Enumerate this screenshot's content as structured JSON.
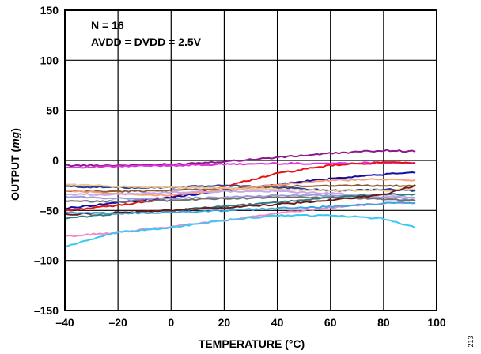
{
  "chart_data": {
    "type": "line",
    "xlabel": "TEMPERATURE (°C)",
    "ylabel": "OUTPUT (mg)",
    "ylabel_parts": [
      "OUTPUT (",
      "mg",
      ")"
    ],
    "xlim": [
      -40,
      100
    ],
    "ylim": [
      -150,
      150
    ],
    "x_ticks": [
      -40,
      -20,
      0,
      20,
      40,
      60,
      80,
      100
    ],
    "x_tick_labels": [
      "–40",
      "–20",
      "0",
      "20",
      "40",
      "60",
      "80",
      "100"
    ],
    "y_ticks": [
      -150,
      -100,
      -50,
      0,
      50,
      100,
      150
    ],
    "y_tick_labels": [
      "–150",
      "–100",
      "–50",
      "0",
      "50",
      "100",
      "150"
    ],
    "grid": true,
    "annotations": [
      "N = 16",
      "AVDD = DVDD = 2.5V"
    ],
    "figure_id": "213",
    "series": [
      {
        "color": "#8B1A8B",
        "x": [
          -40,
          -20,
          0,
          20,
          40,
          60,
          80,
          92
        ],
        "y": [
          -5,
          -5,
          -4,
          -1,
          3,
          7,
          10,
          9
        ]
      },
      {
        "color": "#E030E0",
        "x": [
          -40,
          -20,
          0,
          20,
          40,
          60,
          80,
          92
        ],
        "y": [
          -7,
          -6,
          -5,
          -4,
          -3,
          -3,
          -2,
          -3
        ]
      },
      {
        "color": "#E81010",
        "x": [
          -40,
          -20,
          0,
          20,
          40,
          60,
          80,
          92
        ],
        "y": [
          -50,
          -45,
          -37,
          -26,
          -13,
          -5,
          -2,
          -3
        ]
      },
      {
        "color": "#1010A0",
        "x": [
          -40,
          -20,
          0,
          20,
          40,
          60,
          80,
          92
        ],
        "y": [
          -48,
          -42,
          -37,
          -30,
          -24,
          -18,
          -14,
          -12
        ]
      },
      {
        "color": "#2E3E9A",
        "x": [
          -40,
          -20,
          0,
          20,
          40,
          60,
          80,
          92
        ],
        "y": [
          -26,
          -27,
          -27,
          -25,
          -27,
          -30,
          -29,
          -30
        ]
      },
      {
        "color": "#8A5A3A",
        "x": [
          -40,
          -20,
          0,
          20,
          40,
          60,
          80,
          92
        ],
        "y": [
          -31,
          -31,
          -30,
          -28,
          -26,
          -25,
          -25,
          -26
        ]
      },
      {
        "color": "#F4A07A",
        "x": [
          -40,
          -20,
          0,
          20,
          40,
          60,
          80,
          92
        ],
        "y": [
          -30,
          -33,
          -35,
          -30,
          -24,
          -20,
          -19,
          -20
        ]
      },
      {
        "color": "#E8C890",
        "x": [
          -40,
          -20,
          0,
          20,
          40,
          60,
          80,
          92
        ],
        "y": [
          -24,
          -26,
          -27,
          -28,
          -29,
          -30,
          -30,
          -29
        ]
      },
      {
        "color": "#C8A8E8",
        "x": [
          -40,
          -20,
          0,
          20,
          40,
          60,
          80,
          92
        ],
        "y": [
          -34,
          -34,
          -32,
          -31,
          -31,
          -33,
          -35,
          -37
        ]
      },
      {
        "color": "#9C9CD8",
        "x": [
          -40,
          -20,
          0,
          20,
          40,
          60,
          80,
          92
        ],
        "y": [
          -36,
          -38,
          -38,
          -37,
          -35,
          -35,
          -37,
          -38
        ]
      },
      {
        "color": "#707070",
        "x": [
          -40,
          -20,
          0,
          20,
          40,
          60,
          80,
          92
        ],
        "y": [
          -41,
          -41,
          -40,
          -38,
          -37,
          -37,
          -39,
          -40
        ]
      },
      {
        "color": "#2E7D80",
        "x": [
          -40,
          -20,
          0,
          20,
          40,
          60,
          80,
          92
        ],
        "y": [
          -58,
          -53,
          -50,
          -46,
          -42,
          -37,
          -34,
          -34
        ]
      },
      {
        "color": "#6E1818",
        "x": [
          -40,
          -20,
          0,
          20,
          40,
          60,
          80,
          92
        ],
        "y": [
          -54,
          -52,
          -50,
          -47,
          -44,
          -40,
          -34,
          -25
        ]
      },
      {
        "color": "#F088C8",
        "x": [
          -40,
          -20,
          0,
          20,
          40,
          60,
          80,
          92
        ],
        "y": [
          -76,
          -72,
          -66,
          -60,
          -53,
          -47,
          -43,
          -42
        ]
      },
      {
        "color": "#38C8F0",
        "x": [
          -40,
          -20,
          0,
          20,
          40,
          60,
          80,
          92
        ],
        "y": [
          -86,
          -72,
          -67,
          -60,
          -55,
          -55,
          -58,
          -67
        ]
      },
      {
        "color": "#38A8E0",
        "x": [
          -40,
          -20,
          0,
          20,
          40,
          60,
          80,
          92
        ],
        "y": [
          -52,
          -53,
          -52,
          -50,
          -48,
          -46,
          -43,
          -42
        ]
      }
    ]
  }
}
